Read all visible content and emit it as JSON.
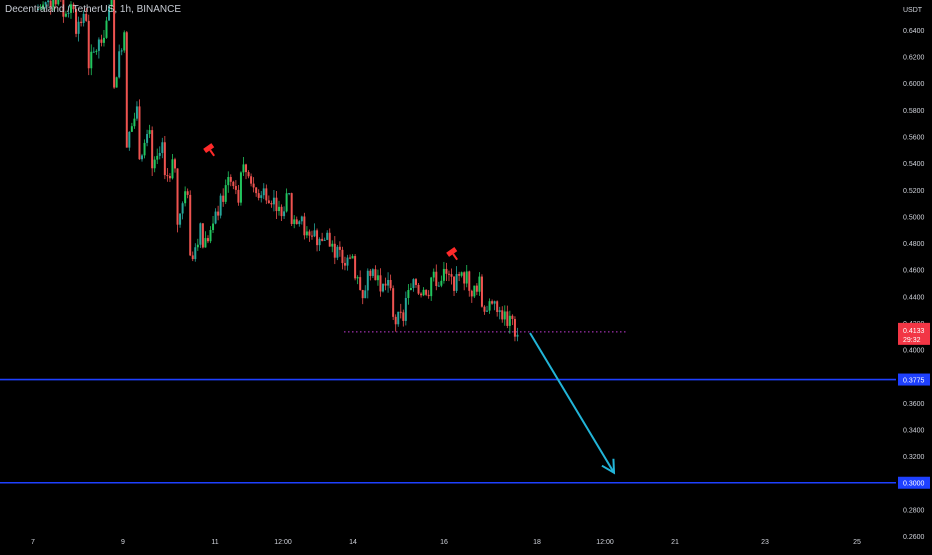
{
  "header": {
    "symbol": "Decentraland / TetherUS",
    "sep1": ", ",
    "interval": "1h",
    "sep2": ", ",
    "exchange": "BINANCE"
  },
  "colors": {
    "background": "#000000",
    "up": "#26a69a",
    "up_bright": "#22c55e",
    "down": "#ef5350",
    "level_line": "#1e40ff",
    "level_label_bg": "#1e40ff",
    "arrow": "#22b5d8",
    "price_label_bg": "#f23645",
    "dotted_line": "#c23bd4",
    "axis_text": "#d1d4dc",
    "marker": "#ff2a2a"
  },
  "chart_data": {
    "type": "candlestick",
    "currency_label": "USDT",
    "ylim": [
      0.2495,
      0.6625
    ],
    "y_ticks": [
      "0.6400",
      "0.6200",
      "0.6000",
      "0.5800",
      "0.5600",
      "0.5400",
      "0.5200",
      "0.5000",
      "0.4800",
      "0.4600",
      "0.4400",
      "0.4200",
      "0.4000",
      "0.3600",
      "0.3400",
      "0.3200",
      "0.2800",
      "0.2600"
    ],
    "x_ticks": [
      "7",
      "9",
      "11",
      "12:00",
      "14",
      "16",
      "18",
      "12:00",
      "21",
      "23",
      "25"
    ],
    "price_path": [
      [
        0.655,
        0.66
      ],
      [
        0.66,
        0.665
      ],
      [
        0.65,
        0.66
      ],
      [
        0.64,
        0.65
      ],
      [
        0.61,
        0.63
      ],
      [
        0.625,
        0.66
      ],
      [
        0.59,
        0.64
      ],
      [
        0.55,
        0.58
      ],
      [
        0.545,
        0.56
      ],
      [
        0.53,
        0.55
      ],
      [
        0.525,
        0.54
      ],
      [
        0.49,
        0.52
      ],
      [
        0.46,
        0.49
      ],
      [
        0.475,
        0.49
      ],
      [
        0.495,
        0.52
      ],
      [
        0.54,
        0.51
      ],
      [
        0.54,
        0.53
      ],
      [
        0.515,
        0.52
      ],
      [
        0.52,
        0.51
      ],
      [
        0.5,
        0.515
      ],
      [
        0.495,
        0.502
      ],
      [
        0.48,
        0.49
      ],
      [
        0.478,
        0.485
      ],
      [
        0.48,
        0.47
      ],
      [
        0.465,
        0.47
      ],
      [
        0.455,
        0.44
      ],
      [
        0.465,
        0.455
      ],
      [
        0.445,
        0.45
      ],
      [
        0.42,
        0.425
      ],
      [
        0.435,
        0.45
      ],
      [
        0.445,
        0.445
      ],
      [
        0.455,
        0.45
      ],
      [
        0.46,
        0.45
      ],
      [
        0.45,
        0.455
      ],
      [
        0.44,
        0.45
      ],
      [
        0.435,
        0.43
      ],
      [
        0.432,
        0.425
      ],
      [
        0.425,
        0.413
      ]
    ],
    "resistance_markers": [
      0.551,
      0.473
    ],
    "current_price": "0.4133",
    "countdown": "29:32",
    "support_reference": 0.4133,
    "levels": [
      {
        "value": 0.3775,
        "label": "0.3775"
      },
      {
        "value": 0.3,
        "label": "0.3000"
      }
    ],
    "projection_target": 0.3015
  }
}
